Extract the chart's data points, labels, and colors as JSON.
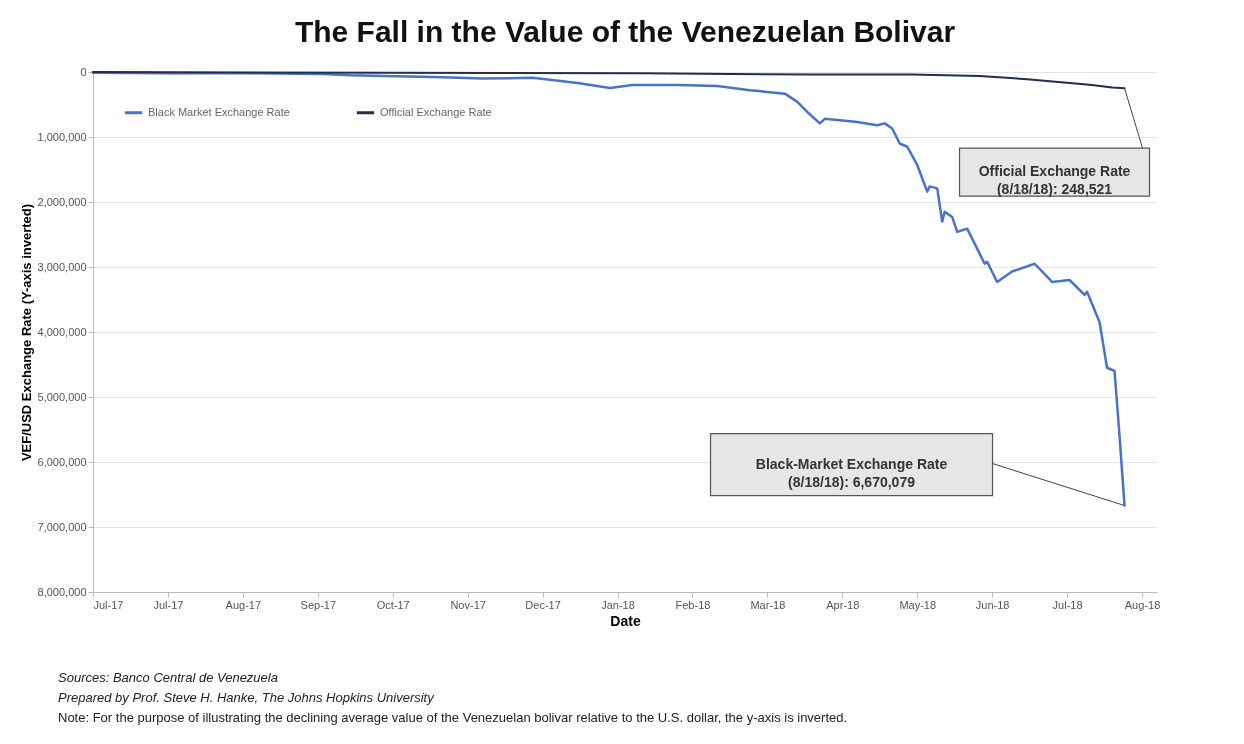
{
  "chart_data": {
    "type": "line",
    "title": "The Fall in the Value of the Venezuelan Bolivar",
    "xlabel": "Date",
    "ylabel": "VEF/USD Exchange Rate (Y-axis inverted)",
    "series": [
      {
        "name": "Black Market Exchange Rate",
        "color": "#4a72c8",
        "x": [
          "2017-07-01",
          "2017-08-01",
          "2017-09-01",
          "2017-10-01",
          "2017-10-12",
          "2017-11-18",
          "2017-12-04",
          "2017-12-24",
          "2018-01-11",
          "2018-01-24",
          "2018-02-02",
          "2018-02-20",
          "2018-03-08",
          "2018-03-21",
          "2018-04-04",
          "2018-04-09",
          "2018-04-13",
          "2018-04-18",
          "2018-04-20",
          "2018-05-03",
          "2018-05-11",
          "2018-05-14",
          "2018-05-17",
          "2018-05-20",
          "2018-05-23",
          "2018-05-27",
          "2018-05-31",
          "2018-06-01",
          "2018-06-04",
          "2018-06-06",
          "2018-06-07",
          "2018-06-10",
          "2018-06-12",
          "2018-06-16",
          "2018-06-23",
          "2018-06-24",
          "2018-06-28",
          "2018-07-04",
          "2018-07-13",
          "2018-07-20",
          "2018-07-27",
          "2018-08-02",
          "2018-08-03",
          "2018-08-08",
          "2018-08-11",
          "2018-08-14",
          "2018-08-16",
          "2018-08-18"
        ],
        "values": [
          10000,
          20000,
          20000,
          30000,
          50000,
          80000,
          100000,
          90000,
          170000,
          245000,
          200000,
          200000,
          215000,
          280000,
          333000,
          460000,
          615000,
          790000,
          720000,
          770000,
          820000,
          790000,
          870000,
          1100000,
          1150000,
          1430000,
          1840000,
          1760000,
          1790000,
          2300000,
          2150000,
          2230000,
          2460000,
          2410000,
          2950000,
          2920000,
          3230000,
          3070000,
          2950000,
          3230000,
          3200000,
          3430000,
          3380000,
          3850000,
          4550000,
          4600000,
          5600000,
          6670079
        ]
      },
      {
        "name": "Official Exchange Rate",
        "color": "#1f2f4d",
        "x": [
          "2017-07-01",
          "2018-02-05",
          "2018-04-15",
          "2018-05-25",
          "2018-06-21",
          "2018-07-10",
          "2018-07-27",
          "2018-08-05",
          "2018-08-13",
          "2018-08-18"
        ],
        "values": [
          0,
          20000,
          40000,
          40000,
          60000,
          110000,
          170000,
          200000,
          240000,
          248521
        ]
      }
    ],
    "xlim": [
      "2017-07-01",
      "2018-08-31"
    ],
    "xticks": [
      {
        "value": "2017-07-01",
        "label": "Jul-17"
      },
      {
        "value": "2017-07-31",
        "label": "Jul-17"
      },
      {
        "value": "2017-08-30",
        "label": "Aug-17"
      },
      {
        "value": "2017-09-29",
        "label": "Sep-17"
      },
      {
        "value": "2017-10-29",
        "label": "Oct-17"
      },
      {
        "value": "2017-11-28",
        "label": "Nov-17"
      },
      {
        "value": "2017-12-28",
        "label": "Dec-17"
      },
      {
        "value": "2018-01-27",
        "label": "Jan-18"
      },
      {
        "value": "2018-02-26",
        "label": "Feb-18"
      },
      {
        "value": "2018-03-28",
        "label": "Mar-18"
      },
      {
        "value": "2018-04-27",
        "label": "Apr-18"
      },
      {
        "value": "2018-05-27",
        "label": "May-18"
      },
      {
        "value": "2018-06-26",
        "label": "Jun-18"
      },
      {
        "value": "2018-07-26",
        "label": "Jul-18"
      },
      {
        "value": "2018-08-25",
        "label": "Aug-18"
      }
    ],
    "ylim": [
      8000000,
      0
    ],
    "yticks": [
      0,
      {
        "value": 1000000,
        "label": "1,000,000"
      },
      {
        "value": 2000000,
        "label": "2,000,000"
      },
      {
        "value": 3000000,
        "label": "3,000,000"
      },
      {
        "value": 4000000,
        "label": "4,000,000"
      },
      {
        "value": 5000000,
        "label": "5,000,000"
      },
      {
        "value": 6000000,
        "label": "6,000,000"
      },
      {
        "value": 7000000,
        "label": "7,000,000"
      },
      {
        "value": 8000000,
        "label": "8,000,000"
      }
    ],
    "grid": "y",
    "legend": "top left",
    "line_style": "solid",
    "annotations": [
      "Official Exchange Rate\n(8/18/18): 248,521",
      "Black-Market Exchange Rate\n(8/18/18): 6,670,079",
      "Sources: Banco Central de Venezuela",
      "Prepared by Prof. Steve H. Hanke, The Johns Hopkins University",
      "Note: For the purpose of illustrating the declining average value of the Venezuelan bolivar relative to the U.S. dollar, the y-axis is inverted."
    ]
  }
}
